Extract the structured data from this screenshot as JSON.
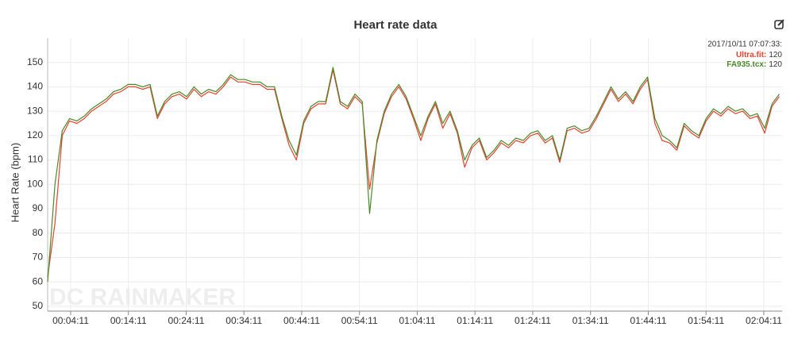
{
  "chart_data": {
    "type": "line",
    "title": "Heart rate data",
    "ylabel": "Heart Rate (bpm)",
    "watermark": "DC RAINMAKER",
    "x": [
      12,
      88,
      164,
      240,
      316,
      392,
      468,
      544,
      620,
      696,
      772,
      848,
      924,
      1000,
      1076,
      1152,
      1228,
      1304,
      1380,
      1456,
      1532,
      1608,
      1684,
      1760,
      1836,
      1912,
      1988,
      2064,
      2140,
      2216,
      2292,
      2368,
      2444,
      2520,
      2596,
      2672,
      2748,
      2824,
      2900,
      2976,
      3052,
      3128,
      3204,
      3280,
      3356,
      3432,
      3508,
      3584,
      3660,
      3736,
      3812,
      3888,
      3964,
      4040,
      4116,
      4192,
      4268,
      4344,
      4420,
      4496,
      4572,
      4648,
      4724,
      4800,
      4876,
      4952,
      5028,
      5104,
      5180,
      5256,
      5332,
      5408,
      5484,
      5560,
      5636,
      5712,
      5788,
      5864,
      5940,
      6016,
      6092,
      6168,
      6244,
      6320,
      6396,
      6472,
      6548,
      6624,
      6700,
      6776,
      6852,
      6928,
      7004,
      7080,
      7156,
      7232,
      7308,
      7384,
      7460,
      7536,
      7612
    ],
    "series": [
      {
        "name": "Ultra.fit",
        "color": "#e8412c",
        "values": [
          62,
          84,
          120,
          126,
          125,
          127,
          130,
          132,
          134,
          137,
          138,
          140,
          140,
          139,
          140,
          127,
          133,
          136,
          137,
          135,
          139,
          136,
          138,
          137,
          140,
          144,
          142,
          142,
          141,
          141,
          139,
          139,
          127,
          116,
          110,
          125,
          131,
          133,
          133,
          147,
          133,
          131,
          136,
          133,
          98,
          117,
          129,
          136,
          140,
          135,
          127,
          118,
          127,
          133,
          123,
          129,
          121,
          107,
          115,
          118,
          110,
          113,
          117,
          115,
          118,
          117,
          120,
          121,
          117,
          119,
          109,
          122,
          123,
          121,
          122,
          127,
          133,
          139,
          134,
          137,
          133,
          139,
          143,
          125,
          118,
          117,
          114,
          124,
          121,
          119,
          126,
          130,
          128,
          131,
          129,
          130,
          127,
          128,
          121,
          132,
          136
        ]
      },
      {
        "name": "FA935.tcx",
        "color": "#4a8a2a",
        "values": [
          60,
          100,
          122,
          127,
          126,
          128,
          131,
          133,
          135,
          138,
          139,
          141,
          141,
          140,
          141,
          128,
          134,
          137,
          138,
          136,
          140,
          137,
          139,
          138,
          141,
          145,
          143,
          143,
          142,
          142,
          140,
          140,
          128,
          118,
          112,
          126,
          132,
          134,
          134,
          148,
          134,
          132,
          137,
          134,
          88,
          118,
          130,
          137,
          141,
          136,
          128,
          120,
          128,
          134,
          125,
          130,
          122,
          110,
          116,
          119,
          111,
          114,
          118,
          116,
          119,
          118,
          121,
          122,
          118,
          120,
          110,
          123,
          124,
          122,
          123,
          128,
          134,
          140,
          135,
          138,
          134,
          140,
          144,
          127,
          120,
          118,
          115,
          125,
          122,
          120,
          127,
          131,
          129,
          132,
          130,
          131,
          128,
          129,
          123,
          133,
          137
        ]
      }
    ],
    "xlim": [
      12,
      7641
    ],
    "xticks": [
      {
        "value": 251,
        "label": "00:04:11"
      },
      {
        "value": 851,
        "label": "00:14:11"
      },
      {
        "value": 1451,
        "label": "00:24:11"
      },
      {
        "value": 2051,
        "label": "00:34:11"
      },
      {
        "value": 2651,
        "label": "00:44:11"
      },
      {
        "value": 3251,
        "label": "00:54:11"
      },
      {
        "value": 3851,
        "label": "01:04:11"
      },
      {
        "value": 4451,
        "label": "01:14:11"
      },
      {
        "value": 5051,
        "label": "01:24:11"
      },
      {
        "value": 5651,
        "label": "01:34:11"
      },
      {
        "value": 6251,
        "label": "01:44:11"
      },
      {
        "value": 6851,
        "label": "01:54:11"
      },
      {
        "value": 7451,
        "label": "02:04:11"
      }
    ],
    "ylim": [
      48,
      160
    ],
    "yticks": [
      50,
      60,
      70,
      80,
      90,
      100,
      110,
      120,
      130,
      140,
      150
    ],
    "grid": true,
    "tooltip": {
      "header": "2017/10/11 07:07:33:",
      "rows": [
        {
          "label": "Ultra.fit:",
          "value": 120
        },
        {
          "label": "FA935.tcx:",
          "value": 120
        }
      ]
    }
  }
}
